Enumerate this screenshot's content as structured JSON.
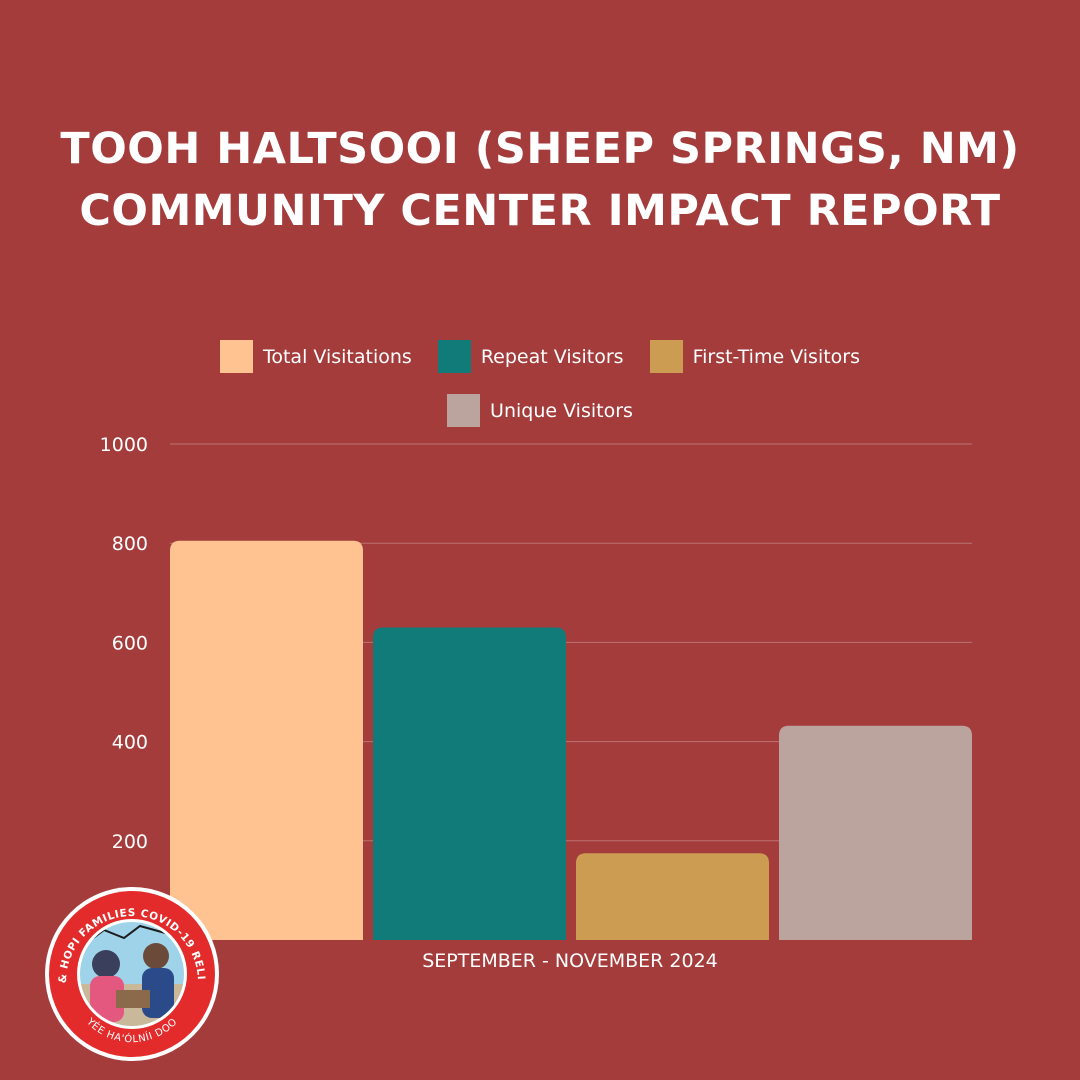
{
  "header": {
    "title_line1": "TOOH HALTSOOI (SHEEP SPRINGS, NM)",
    "title_line2": "COMMUNITY CENTER IMPACT REPORT"
  },
  "chart_data": {
    "type": "bar",
    "categories": [
      "SEPTEMBER - NOVEMBER 2024"
    ],
    "series": [
      {
        "name": "Total Visitations",
        "values": [
          805
        ],
        "color": "#fec391"
      },
      {
        "name": "Repeat Visitors",
        "values": [
          630
        ],
        "color": "#117b7a"
      },
      {
        "name": "First-Time Visitors",
        "values": [
          175
        ],
        "color": "#cc9c52"
      },
      {
        "name": "Unique Visitors",
        "values": [
          432
        ],
        "color": "#bba49e"
      }
    ],
    "y_ticks": [
      "1000",
      "800",
      "600",
      "400",
      "200"
    ],
    "ylim": [
      0,
      1000
    ],
    "grid": true,
    "legend_position": "top"
  },
  "logo": {
    "text_top": "NAVAJO & HOPI FAMILIES COVID-19 RELIEF FUND",
    "text_bottom": "YÉE HA'ÓLNÍI DOO",
    "ring_color": "#e32b2b"
  }
}
